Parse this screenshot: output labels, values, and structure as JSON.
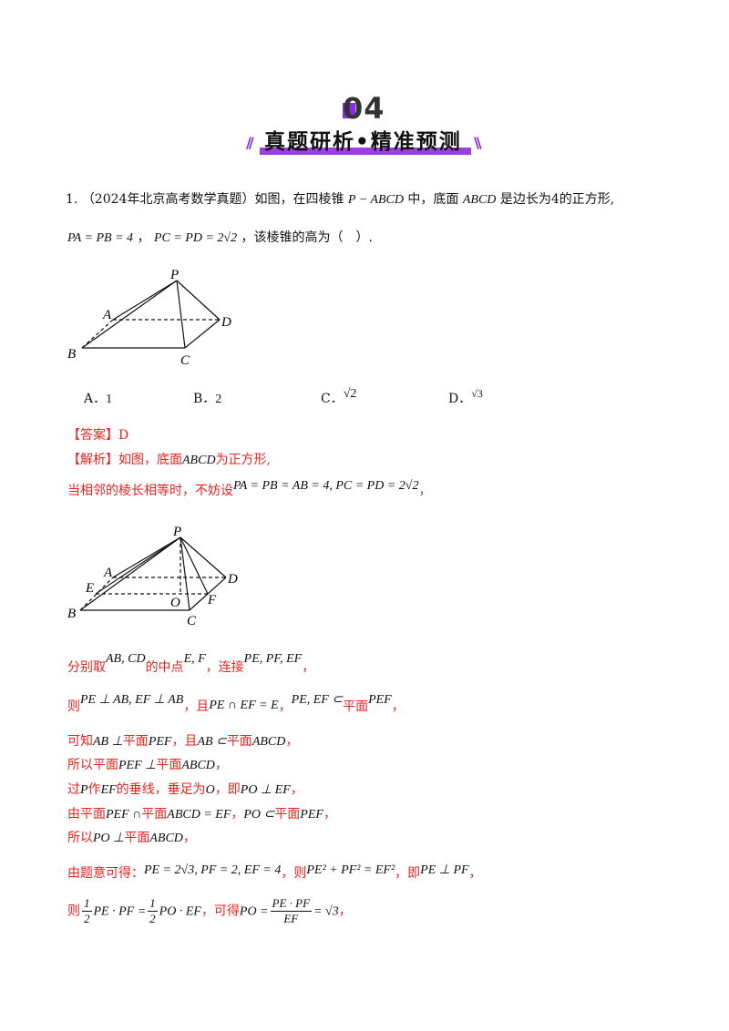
{
  "header": {
    "number": "04",
    "title": "真题研析•精准预测"
  },
  "question": {
    "index": "1.",
    "line1_a": "（2024年北京高考数学真题）如图，在四棱锥",
    "pyramid": "P − ABCD",
    "line1_b": "中，底面",
    "base": "ABCD",
    "line1_c": "是边长为4的正方形,",
    "cond1": "PA = PB = 4",
    "comma": "，",
    "cond2": "PC = PD = 2√2",
    "line2_b": "，该棱锥的高为（　）."
  },
  "options": [
    {
      "letter": "A．",
      "value": "1"
    },
    {
      "letter": "B．",
      "value": "2"
    },
    {
      "letter": "C．",
      "value": "√2"
    },
    {
      "letter": "D．",
      "value": "√3"
    }
  ],
  "answer": {
    "label": "【答案】",
    "value": "D"
  },
  "analysis": {
    "label": "【解析】",
    "l1_a": "如图，底面",
    "l1_b": "ABCD",
    "l1_c": "为正方形,",
    "l2_a": "当相邻的棱长相等时，不妨设",
    "l2_b": "PA = PB = AB = 4, PC = PD = 2√2",
    "l2_c": "，",
    "l3_a": "分别取",
    "l3_b": "AB, CD",
    "l3_c": "的中点",
    "l3_d": "E, F",
    "l3_e": "，连接",
    "l3_f": "PE, PF, EF",
    "l3_g": "，",
    "l4_a": "则",
    "l4_b": "PE ⊥ AB, EF ⊥ AB",
    "l4_c": "，且",
    "l4_d": "PE ∩ EF = E",
    "l4_e": "，",
    "l4_f": "PE, EF ⊂",
    "l4_g": "平面",
    "l4_h": "PEF",
    "l4_i": "，",
    "l5_a": "可知",
    "l5_b": "AB ⊥",
    "l5_c": "平面",
    "l5_d": "PEF",
    "l5_e": "，且",
    "l5_f": "AB ⊂",
    "l5_g": "平面",
    "l5_h": "ABCD",
    "l5_i": "，",
    "l6_a": "所以平面",
    "l6_b": "PEF ⊥",
    "l6_c": "平面",
    "l6_d": "ABCD",
    "l6_e": "，",
    "l7_a": "过",
    "l7_b": "P",
    "l7_c": "作",
    "l7_d": "EF",
    "l7_e": "的垂线，垂足为",
    "l7_f": "O",
    "l7_g": "，即",
    "l7_h": "PO ⊥ EF",
    "l7_i": "，",
    "l8_a": "由平面",
    "l8_b": "PEF ∩",
    "l8_c": "平面",
    "l8_d": "ABCD = EF",
    "l8_e": "，",
    "l8_f": "PO ⊂",
    "l8_g": "平面",
    "l8_h": "PEF",
    "l8_i": "，",
    "l9_a": "所以",
    "l9_b": "PO ⊥",
    "l9_c": "平面",
    "l9_d": "ABCD",
    "l9_e": "，",
    "l10_a": "由题意可得：",
    "l10_b": "PE = 2√3, PF = 2, EF = 4",
    "l10_c": "，则",
    "l10_d": "PE² + PF² = EF²",
    "l10_e": "，即",
    "l10_f": "PE ⊥ PF",
    "l10_g": "，",
    "l11_a": "则",
    "l11_half": "1",
    "l11_two": "2",
    "l11_b": "PE · PF =",
    "l11_c": "PO · EF",
    "l11_d": "，可得",
    "l11_e": "PO =",
    "l11_num": "PE · PF",
    "l11_den": "EF",
    "l11_f": "= √3",
    "l11_g": "，"
  },
  "figure1": {
    "labels": {
      "P": "P",
      "A": "A",
      "B": "B",
      "C": "C",
      "D": "D"
    }
  },
  "figure2": {
    "labels": {
      "P": "P",
      "A": "A",
      "B": "B",
      "C": "C",
      "D": "D",
      "E": "E",
      "O": "O",
      "F": "F"
    }
  }
}
